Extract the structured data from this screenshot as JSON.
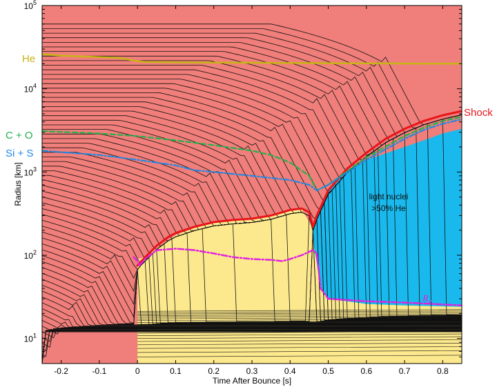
{
  "chart_data": {
    "type": "line",
    "xlabel": "Time After Bounce [s]",
    "ylabel": "Radius [km]",
    "xlim": [
      -0.25,
      0.85
    ],
    "ylim": [
      5,
      100000
    ],
    "yscale": "log",
    "x_ticks": [
      -0.2,
      -0.1,
      0,
      0.1,
      0.2,
      0.3,
      0.4,
      0.5,
      0.6,
      0.7,
      0.8
    ],
    "x_tick_labels": [
      "-0.2",
      "-0.1",
      "0",
      "0.1",
      "0.2",
      "0.3",
      "0.4",
      "0.5",
      "0.6",
      "0.7",
      "0.8"
    ],
    "y_ticks": [
      10,
      100,
      1000,
      10000,
      100000
    ],
    "y_tick_labels": [
      {
        "base": "10",
        "exp": "1"
      },
      {
        "base": "10",
        "exp": "2"
      },
      {
        "base": "10",
        "exp": "3"
      },
      {
        "base": "10",
        "exp": "4"
      },
      {
        "base": "10",
        "exp": "5"
      }
    ],
    "grid": false,
    "regions": {
      "background_color": "#f07e7a",
      "yellow_color": "#fde98d",
      "blue_color": "#19b9ee",
      "yellow_upper": [
        [
          0.0,
          90
        ],
        [
          0.02,
          95
        ],
        [
          0.05,
          120
        ],
        [
          0.1,
          175
        ],
        [
          0.15,
          215
        ],
        [
          0.2,
          245
        ],
        [
          0.25,
          265
        ],
        [
          0.3,
          275
        ],
        [
          0.35,
          300
        ],
        [
          0.4,
          350
        ],
        [
          0.43,
          360
        ],
        [
          0.455,
          230
        ],
        [
          0.46,
          220
        ]
      ],
      "blue_boundary": [
        [
          0.46,
          220
        ],
        [
          0.47,
          300
        ],
        [
          0.5,
          600
        ],
        [
          0.55,
          1000
        ],
        [
          0.6,
          1400
        ],
        [
          0.7,
          2000
        ],
        [
          0.75,
          2400
        ],
        [
          0.8,
          2900
        ],
        [
          0.85,
          3300
        ]
      ],
      "blue_lower": [
        [
          0.46,
          220
        ],
        [
          0.46,
          150
        ],
        [
          0.465,
          110
        ],
        [
          0.47,
          80
        ],
        [
          0.48,
          40
        ],
        [
          0.5,
          30
        ],
        [
          0.6,
          26
        ],
        [
          0.7,
          25
        ],
        [
          0.85,
          24
        ]
      ],
      "yellow_lower_left": [
        [
          0.0,
          5
        ],
        [
          0.85,
          5
        ]
      ],
      "yellow_lower_right": [
        [
          0.46,
          22
        ],
        [
          0.85,
          22
        ]
      ]
    },
    "series": [
      {
        "name": "Shock",
        "color": "#e8141a",
        "style": "solid",
        "x": [
          0.0,
          0.01,
          0.03,
          0.05,
          0.08,
          0.1,
          0.15,
          0.2,
          0.25,
          0.3,
          0.35,
          0.4,
          0.43,
          0.45,
          0.46,
          0.47,
          0.5,
          0.55,
          0.6,
          0.65,
          0.7,
          0.75,
          0.8,
          0.85
        ],
        "y": [
          75,
          85,
          105,
          130,
          165,
          185,
          220,
          250,
          265,
          275,
          300,
          350,
          365,
          330,
          220,
          300,
          600,
          1100,
          1700,
          2500,
          3300,
          4100,
          4800,
          5400
        ]
      },
      {
        "name": "He",
        "color": "#c8b416",
        "style": "solid",
        "x": [
          -0.25,
          -0.2,
          -0.1,
          -0.05,
          0.0,
          0.02,
          0.1,
          0.2,
          0.3,
          0.4,
          0.5,
          0.6,
          0.7,
          0.85
        ],
        "y": [
          26000,
          25000,
          24000,
          23500,
          21500,
          21000,
          20800,
          20600,
          20500,
          20400,
          20300,
          20200,
          20100,
          20000
        ]
      },
      {
        "name": "C + O",
        "color": "#22b14c",
        "style": "dashed",
        "x": [
          -0.25,
          -0.1,
          0.0,
          0.1,
          0.2,
          0.3,
          0.35,
          0.4,
          0.45,
          0.47,
          0.5,
          0.6,
          0.7,
          0.75,
          0.8,
          0.85
        ],
        "y": [
          3100,
          2900,
          2700,
          2400,
          2100,
          1800,
          1600,
          1300,
          900,
          600,
          700,
          1500,
          2700,
          3400,
          4100,
          4600
        ]
      },
      {
        "name": "Si + S",
        "color": "#1e88e5",
        "style": "dashdot",
        "x": [
          -0.25,
          -0.1,
          0.0,
          0.05,
          0.1,
          0.15,
          0.2,
          0.3,
          0.4,
          0.45,
          0.47,
          0.5,
          0.6,
          0.7,
          0.75,
          0.8,
          0.85
        ],
        "y": [
          1800,
          1600,
          1400,
          1300,
          1200,
          1050,
          1000,
          900,
          800,
          700,
          600,
          700,
          1400,
          2500,
          3200,
          3800,
          4300
        ]
      },
      {
        "name": "R_ν",
        "color": "#e020e0",
        "style": "dashdot",
        "x": [
          -0.01,
          0.0,
          0.005,
          0.02,
          0.05,
          0.1,
          0.15,
          0.2,
          0.25,
          0.3,
          0.35,
          0.38,
          0.4,
          0.43,
          0.45,
          0.46,
          0.47,
          0.48,
          0.5,
          0.6,
          0.7,
          0.85
        ],
        "y": [
          95,
          85,
          75,
          90,
          115,
          120,
          115,
          105,
          95,
          90,
          88,
          85,
          90,
          100,
          110,
          115,
          105,
          40,
          30,
          28,
          27,
          25
        ]
      }
    ],
    "annotations": [
      {
        "text": "He",
        "color": "#c8b416"
      },
      {
        "text": "C + O",
        "color": "#22b14c"
      },
      {
        "text": "Si + S",
        "color": "#1e88e5"
      },
      {
        "text": "Shock",
        "color": "#e8141a"
      },
      {
        "text": "light nuclei",
        "color": "#111111"
      },
      {
        "text": ">50% He",
        "color": "#111111"
      },
      {
        "text": "R",
        "subscript": "ν",
        "color": "#e020e0"
      }
    ]
  }
}
